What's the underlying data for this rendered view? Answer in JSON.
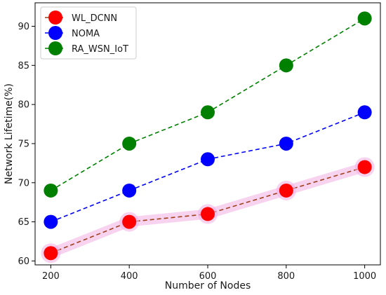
{
  "chart_data": {
    "type": "line",
    "title": "",
    "xlabel": "Number of Nodes",
    "ylabel": "Network Lifetime(%)",
    "categories": [
      200,
      400,
      600,
      800,
      1000
    ],
    "xlim": [
      160,
      1040
    ],
    "ylim": [
      59.5,
      93
    ],
    "xticks": [
      "200",
      "400",
      "600",
      "800",
      "1000"
    ],
    "yticks": [
      "60",
      "65",
      "70",
      "75",
      "80",
      "85",
      "90"
    ],
    "grid": false,
    "legend_position": "top-left",
    "series": [
      {
        "name": "WL_DCNN",
        "values": [
          61,
          65,
          66,
          69,
          72
        ],
        "marker_color": "#ff0000",
        "line_color": "#a0401a",
        "highlight_color": "#f2b6e6"
      },
      {
        "name": "NOMA",
        "values": [
          65,
          69,
          73,
          75,
          79
        ],
        "marker_color": "#0000ff",
        "line_color": "#0000ff"
      },
      {
        "name": "RA_WSN_IoT",
        "values": [
          69,
          75,
          79,
          85,
          91
        ],
        "marker_color": "#008000",
        "line_color": "#008000"
      }
    ]
  }
}
